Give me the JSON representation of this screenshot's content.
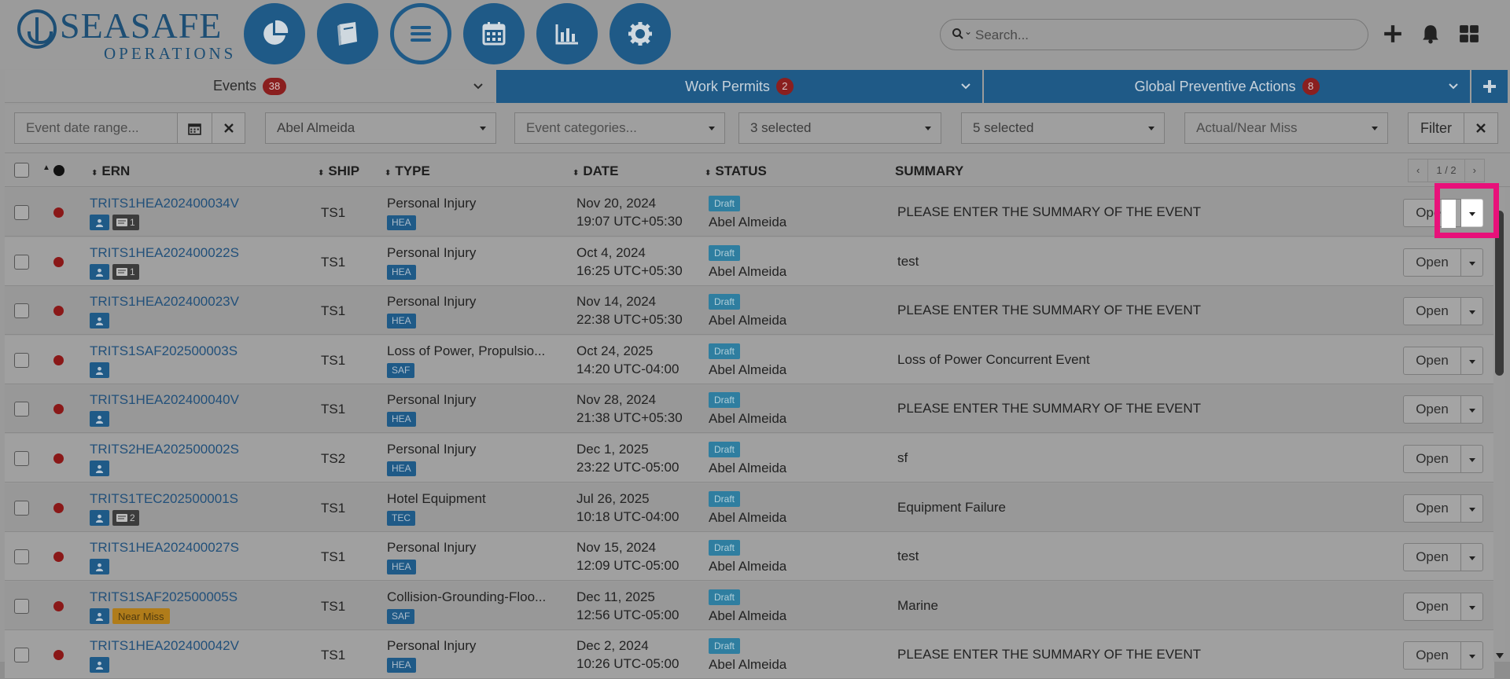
{
  "brand": {
    "name": "SEASAFE",
    "sub": "OPERATIONS"
  },
  "header": {
    "nav": [
      {
        "name": "dashboard-pie-icon"
      },
      {
        "name": "book-icon"
      },
      {
        "name": "list-menu-icon"
      },
      {
        "name": "calendar-icon"
      },
      {
        "name": "bar-chart-icon"
      },
      {
        "name": "gear-icon"
      }
    ],
    "search_placeholder": "Search..."
  },
  "tabs": [
    {
      "label": "Events",
      "count": "38"
    },
    {
      "label": "Work Permits",
      "count": "2"
    },
    {
      "label": "Global Preventive Actions",
      "count": "8"
    }
  ],
  "filters": {
    "date_placeholder": "Event date range...",
    "user": "Abel Almeida",
    "categories_placeholder": "Event categories...",
    "sel1": "3 selected",
    "sel2": "5 selected",
    "actual_placeholder": "Actual/Near Miss",
    "filter_label": "Filter"
  },
  "table": {
    "headers": {
      "ern": "ERN",
      "ship": "SHIP",
      "type": "TYPE",
      "date": "DATE",
      "status": "STATUS",
      "summary": "SUMMARY"
    },
    "pager": "1 / 2",
    "rows": [
      {
        "ern": "TRITS1HEA202400034V",
        "comments": "1",
        "near_miss": "",
        "ship": "TS1",
        "type": "Personal Injury",
        "type_tag": "HEA",
        "date": "Nov 20, 2024",
        "time": "19:07 UTC+05:30",
        "status": "Draft",
        "owner": "Abel Almeida",
        "summary": "PLEASE ENTER THE SUMMARY OF THE EVENT",
        "action": "Open"
      },
      {
        "ern": "TRITS1HEA202400022S",
        "comments": "1",
        "near_miss": "",
        "ship": "TS1",
        "type": "Personal Injury",
        "type_tag": "HEA",
        "date": "Oct 4, 2024",
        "time": "16:25 UTC+05:30",
        "status": "Draft",
        "owner": "Abel Almeida",
        "summary": "test",
        "action": "Open"
      },
      {
        "ern": "TRITS1HEA202400023V",
        "comments": "",
        "near_miss": "",
        "ship": "TS1",
        "type": "Personal Injury",
        "type_tag": "HEA",
        "date": "Nov 14, 2024",
        "time": "22:38 UTC+05:30",
        "status": "Draft",
        "owner": "Abel Almeida",
        "summary": "PLEASE ENTER THE SUMMARY OF THE EVENT",
        "action": "Open"
      },
      {
        "ern": "TRITS1SAF202500003S",
        "comments": "",
        "near_miss": "",
        "ship": "TS1",
        "type": "Loss of Power, Propulsio...",
        "type_tag": "SAF",
        "date": "Oct 24, 2025",
        "time": "14:20 UTC-04:00",
        "status": "Draft",
        "owner": "Abel Almeida",
        "summary": "Loss of Power Concurrent Event",
        "action": "Open"
      },
      {
        "ern": "TRITS1HEA202400040V",
        "comments": "",
        "near_miss": "",
        "ship": "TS1",
        "type": "Personal Injury",
        "type_tag": "HEA",
        "date": "Nov 28, 2024",
        "time": "21:38 UTC+05:30",
        "status": "Draft",
        "owner": "Abel Almeida",
        "summary": "PLEASE ENTER THE SUMMARY OF THE EVENT",
        "action": "Open"
      },
      {
        "ern": "TRITS2HEA202500002S",
        "comments": "",
        "near_miss": "",
        "ship": "TS2",
        "type": "Personal Injury",
        "type_tag": "HEA",
        "date": "Dec 1, 2025",
        "time": "23:22 UTC-05:00",
        "status": "Draft",
        "owner": "Abel Almeida",
        "summary": "sf",
        "action": "Open"
      },
      {
        "ern": "TRITS1TEC202500001S",
        "comments": "2",
        "near_miss": "",
        "ship": "TS1",
        "type": "Hotel Equipment",
        "type_tag": "TEC",
        "date": "Jul 26, 2025",
        "time": "10:18 UTC-04:00",
        "status": "Draft",
        "owner": "Abel Almeida",
        "summary": "Equipment Failure",
        "action": "Open"
      },
      {
        "ern": "TRITS1HEA202400027S",
        "comments": "",
        "near_miss": "",
        "ship": "TS1",
        "type": "Personal Injury",
        "type_tag": "HEA",
        "date": "Nov 15, 2024",
        "time": "12:09 UTC-05:00",
        "status": "Draft",
        "owner": "Abel Almeida",
        "summary": "test",
        "action": "Open"
      },
      {
        "ern": "TRITS1SAF202500005S",
        "comments": "",
        "near_miss": "Near Miss",
        "ship": "TS1",
        "type": "Collision-Grounding-Floo...",
        "type_tag": "SAF",
        "date": "Dec 11, 2025",
        "time": "12:56 UTC-05:00",
        "status": "Draft",
        "owner": "Abel Almeida",
        "summary": "Marine",
        "action": "Open"
      },
      {
        "ern": "TRITS1HEA202400042V",
        "comments": "",
        "near_miss": "",
        "ship": "TS1",
        "type": "Personal Injury",
        "type_tag": "HEA",
        "date": "Dec 2, 2024",
        "time": "10:26 UTC-05:00",
        "status": "Draft",
        "owner": "Abel Almeida",
        "summary": "PLEASE ENTER THE SUMMARY OF THE EVENT",
        "action": "Open"
      }
    ]
  },
  "colors": {
    "brand": "#1f5a87",
    "highlight": "#e8117a",
    "status_dot": "#8a1818"
  }
}
